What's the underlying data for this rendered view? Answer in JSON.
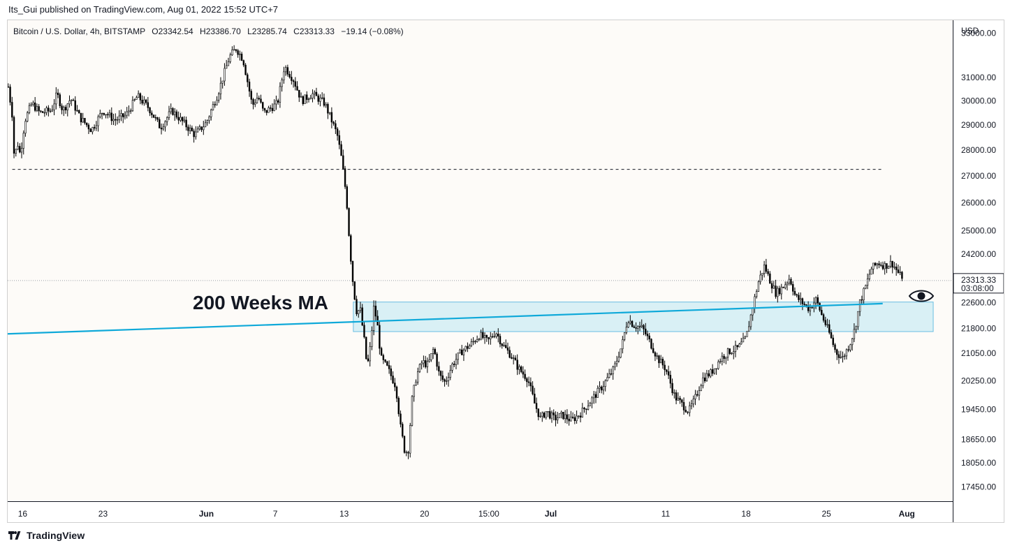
{
  "publish_info": "Its_Gui published on TradingView.com, Aug 01, 2022 15:52 UTC+7",
  "footer_brand": "TradingView",
  "colors": {
    "background": "#fdfbf8",
    "candle": "#000000",
    "ma_line": "#0fa9d9",
    "zone_fill": "#d6eff5",
    "zone_stroke": "#59b8e0",
    "text": "#131722",
    "label_bg": "#ffffff"
  },
  "chart_data": {
    "type": "candlestick",
    "header": {
      "symbol": "Bitcoin / U.S. Dollar, 4h, BITSTAMP",
      "open": "O23342.54",
      "high": "H23386.70",
      "low": "L23285.74",
      "close": "C23313.33",
      "change": "−19.14 (−0.08%)"
    },
    "currency": "USD",
    "y_axis": {
      "scale": "log",
      "range": [
        17100,
        33600
      ],
      "ticks": [
        "33000.00",
        "31000.00",
        "30000.00",
        "29000.00",
        "28000.00",
        "27000.00",
        "26000.00",
        "25000.00",
        "24200.00",
        "22600.00",
        "21800.00",
        "21050.00",
        "20250.00",
        "19450.00",
        "18650.00",
        "18050.00",
        "17450.00"
      ]
    },
    "x_axis": {
      "range_days": [
        -1.3,
        81.0
      ],
      "ticks": [
        {
          "label": "16",
          "day": 0
        },
        {
          "label": "23",
          "day": 7
        },
        {
          "label": "Jun",
          "day": 16
        },
        {
          "label": "7",
          "day": 22
        },
        {
          "label": "13",
          "day": 28
        },
        {
          "label": "20",
          "day": 35
        },
        {
          "label": "15:00",
          "day": 40.6
        },
        {
          "label": "Jul",
          "day": 46
        },
        {
          "label": "11",
          "day": 56
        },
        {
          "label": "18",
          "day": 63
        },
        {
          "label": "25",
          "day": 70
        },
        {
          "label": "Aug",
          "day": 77
        }
      ]
    },
    "price_path": [
      [
        -1.25,
        30600
      ],
      [
        -0.9,
        29400
      ],
      [
        -0.7,
        27400
      ],
      [
        -0.5,
        28400
      ],
      [
        -0.2,
        27800
      ],
      [
        0.2,
        29200
      ],
      [
        0.8,
        29900
      ],
      [
        1.5,
        29500
      ],
      [
        2.5,
        29600
      ],
      [
        3,
        30300
      ],
      [
        3.5,
        29600
      ],
      [
        4.2,
        30100
      ],
      [
        5,
        29300
      ],
      [
        6,
        28800
      ],
      [
        7,
        29600
      ],
      [
        8,
        29200
      ],
      [
        9,
        29400
      ],
      [
        10,
        30200
      ],
      [
        11,
        29700
      ],
      [
        12,
        28900
      ],
      [
        13,
        29600
      ],
      [
        14,
        29100
      ],
      [
        15,
        28600
      ],
      [
        16,
        29100
      ],
      [
        17,
        30300
      ],
      [
        18,
        31900
      ],
      [
        18.6,
        32300
      ],
      [
        19.2,
        31800
      ],
      [
        20,
        29800
      ],
      [
        20.5,
        30200
      ],
      [
        21,
        29500
      ],
      [
        22.2,
        29900
      ],
      [
        22.8,
        31500
      ],
      [
        23.6,
        30900
      ],
      [
        24.3,
        30000
      ],
      [
        25.2,
        30300
      ],
      [
        26.3,
        29900
      ],
      [
        26.9,
        29200
      ],
      [
        27.4,
        28600
      ],
      [
        27.8,
        27600
      ],
      [
        28.2,
        26200
      ],
      [
        28.5,
        24400
      ],
      [
        28.8,
        23100
      ],
      [
        29.1,
        22300
      ],
      [
        29.4,
        22400
      ],
      [
        29.8,
        21300
      ],
      [
        30.0,
        20600
      ],
      [
        30.3,
        21300
      ],
      [
        30.6,
        22500
      ],
      [
        30.9,
        21900
      ],
      [
        31.2,
        20900
      ],
      [
        31.8,
        20600
      ],
      [
        32.5,
        20100
      ],
      [
        32.9,
        19000
      ],
      [
        33.3,
        18300
      ],
      [
        33.6,
        18400
      ],
      [
        33.9,
        19700
      ],
      [
        34.3,
        20400
      ],
      [
        34.8,
        20800
      ],
      [
        35.3,
        20700
      ],
      [
        35.8,
        21200
      ],
      [
        36.3,
        20400
      ],
      [
        36.8,
        20200
      ],
      [
        37.4,
        20700
      ],
      [
        38.2,
        21100
      ],
      [
        39,
        21300
      ],
      [
        39.8,
        21600
      ],
      [
        40.5,
        21400
      ],
      [
        41.2,
        21700
      ],
      [
        41.8,
        21300
      ],
      [
        42.5,
        21000
      ],
      [
        43.2,
        20600
      ],
      [
        44,
        20300
      ],
      [
        44.6,
        19600
      ],
      [
        45.1,
        19200
      ],
      [
        45.6,
        19400
      ],
      [
        46.3,
        19200
      ],
      [
        47,
        19300
      ],
      [
        47.8,
        19150
      ],
      [
        48.6,
        19350
      ],
      [
        49.5,
        19700
      ],
      [
        50.5,
        20100
      ],
      [
        51.5,
        20600
      ],
      [
        52.2,
        21300
      ],
      [
        52.7,
        22100
      ],
      [
        53.2,
        21900
      ],
      [
        54,
        21800
      ],
      [
        54.6,
        21400
      ],
      [
        55.3,
        20900
      ],
      [
        56,
        20600
      ],
      [
        56.8,
        19800
      ],
      [
        57.4,
        19600
      ],
      [
        58,
        19400
      ],
      [
        58.5,
        19700
      ],
      [
        59.2,
        20300
      ],
      [
        60,
        20500
      ],
      [
        60.8,
        20900
      ],
      [
        61.5,
        21100
      ],
      [
        62.3,
        21200
      ],
      [
        63,
        21500
      ],
      [
        63.6,
        22500
      ],
      [
        64.1,
        23300
      ],
      [
        64.6,
        23800
      ],
      [
        65.1,
        23300
      ],
      [
        65.6,
        22900
      ],
      [
        66.2,
        23100
      ],
      [
        66.8,
        23400
      ],
      [
        67.3,
        22800
      ],
      [
        67.9,
        22600
      ],
      [
        68.5,
        22400
      ],
      [
        69.1,
        22700
      ],
      [
        69.6,
        22200
      ],
      [
        70.2,
        21700
      ],
      [
        70.8,
        21100
      ],
      [
        71.4,
        20900
      ],
      [
        72,
        21300
      ],
      [
        72.5,
        21800
      ],
      [
        72.9,
        22600
      ],
      [
        73.4,
        23100
      ],
      [
        73.9,
        23700
      ],
      [
        74.5,
        23900
      ],
      [
        75.1,
        23800
      ],
      [
        75.7,
        23900
      ],
      [
        76.2,
        23600
      ],
      [
        76.7,
        23313
      ]
    ],
    "annotations": {
      "ma_label": "200 Weeks MA",
      "ma_line": {
        "start": [
          -1.3,
          21630
        ],
        "end": [
          74.9,
          22570
        ]
      },
      "resistance_level": {
        "price": 27250,
        "from_day": -0.9,
        "to_day": 74.9
      },
      "support_zone": {
        "from_day": 28.8,
        "to_day": 79.3,
        "low": 21700,
        "high": 22620
      },
      "last_price": {
        "value": "23313.33",
        "countdown": "03:08:00",
        "price": 23313.33
      }
    }
  }
}
